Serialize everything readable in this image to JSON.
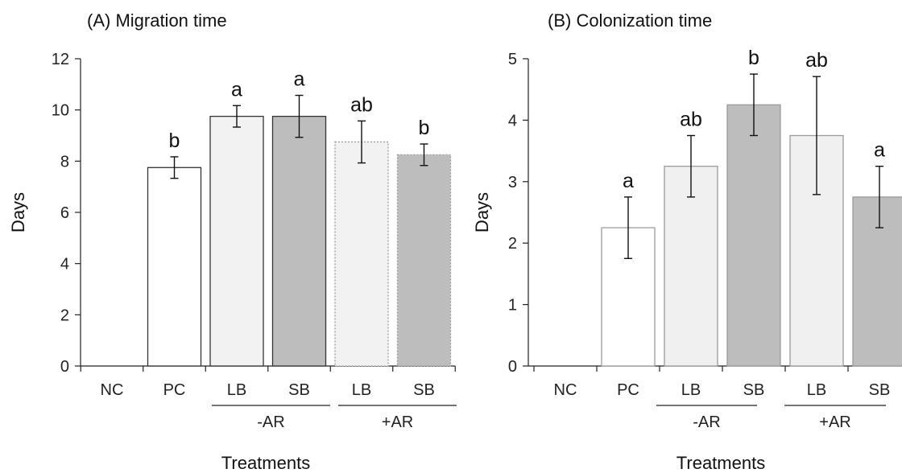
{
  "chart_data": [
    {
      "type": "bar",
      "title": "(A) Migration time",
      "ylabel": "Days",
      "xlabel": "Treatments",
      "ylim": [
        0,
        12
      ],
      "yticks": [
        0,
        2,
        4,
        6,
        8,
        10,
        12
      ],
      "categories": [
        "NC",
        "PC",
        "LB",
        "SB",
        "LB",
        "SB"
      ],
      "groups": [
        {
          "label": "-AR",
          "categories": [
            2,
            3
          ]
        },
        {
          "label": "+AR",
          "categories": [
            4,
            5
          ]
        }
      ],
      "values": [
        0,
        7.75,
        9.75,
        9.75,
        8.75,
        8.25
      ],
      "errors": [
        0,
        0.42,
        0.42,
        0.82,
        0.82,
        0.42
      ],
      "significance": [
        "",
        "b",
        "a",
        "a",
        "ab",
        "b"
      ],
      "bar_fill": [
        "#ffffff",
        "#ffffff",
        "#f2f2f2",
        "#bdbdbd",
        "#f2f2f2",
        "#bdbdbd"
      ],
      "bar_stroke": [
        "#333333",
        "#333333",
        "#333333",
        "#333333",
        "#9a9a9a",
        "#9a9a9a"
      ],
      "bar_dash": [
        false,
        false,
        false,
        false,
        true,
        true
      ],
      "grid": false
    },
    {
      "type": "bar",
      "title": "(B) Colonization time",
      "ylabel": "Days",
      "xlabel": "Treatments",
      "ylim": [
        0,
        5
      ],
      "yticks": [
        0,
        1,
        2,
        3,
        4,
        5
      ],
      "categories": [
        "NC",
        "PC",
        "LB",
        "SB",
        "LB",
        "SB"
      ],
      "groups": [
        {
          "label": "-AR",
          "categories": [
            2,
            3
          ]
        },
        {
          "label": "+AR",
          "categories": [
            4,
            5
          ]
        }
      ],
      "values": [
        0,
        2.25,
        3.25,
        4.25,
        3.75,
        2.75
      ],
      "errors": [
        0,
        0.5,
        0.5,
        0.5,
        0.96,
        0.5
      ],
      "significance": [
        "",
        "a",
        "ab",
        "b",
        "ab",
        "a"
      ],
      "bar_fill": [
        "#ffffff",
        "#ffffff",
        "#f0f0f0",
        "#bdbdbd",
        "#f0f0f0",
        "#bdbdbd"
      ],
      "bar_stroke": [
        "#9a9a9a",
        "#9a9a9a",
        "#9a9a9a",
        "#9a9a9a",
        "#9a9a9a",
        "#9a9a9a"
      ],
      "bar_dash": [
        false,
        false,
        false,
        false,
        false,
        false
      ],
      "grid": false
    }
  ]
}
